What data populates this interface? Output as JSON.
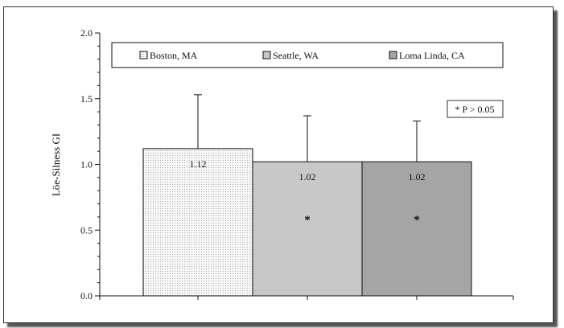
{
  "chart_data": {
    "type": "bar",
    "categories": [
      "Boston, MA",
      "Seattle, WA",
      "Loma Linda, CA"
    ],
    "values": [
      1.12,
      1.02,
      1.02
    ],
    "errors": [
      0.41,
      0.35,
      0.31
    ],
    "value_labels": [
      "1.12",
      "1.02",
      "1.02"
    ],
    "markers": [
      "",
      "*",
      "*"
    ],
    "title": "",
    "xlabel": "",
    "ylabel": "Löe-Silness GI",
    "ylim": [
      0,
      2
    ],
    "yticks": [
      "0.0",
      "0.5",
      "1.0",
      "1.5",
      "2.0"
    ],
    "legend": {
      "placement": "top",
      "entries": [
        "Boston, MA",
        "Seattle, WA",
        "Loma Linda, CA"
      ]
    },
    "annotation": "* P > 0.05",
    "colors": [
      "#f4f4f4",
      "#c8c8c8",
      "#a5a5a5"
    ],
    "grid": false
  }
}
